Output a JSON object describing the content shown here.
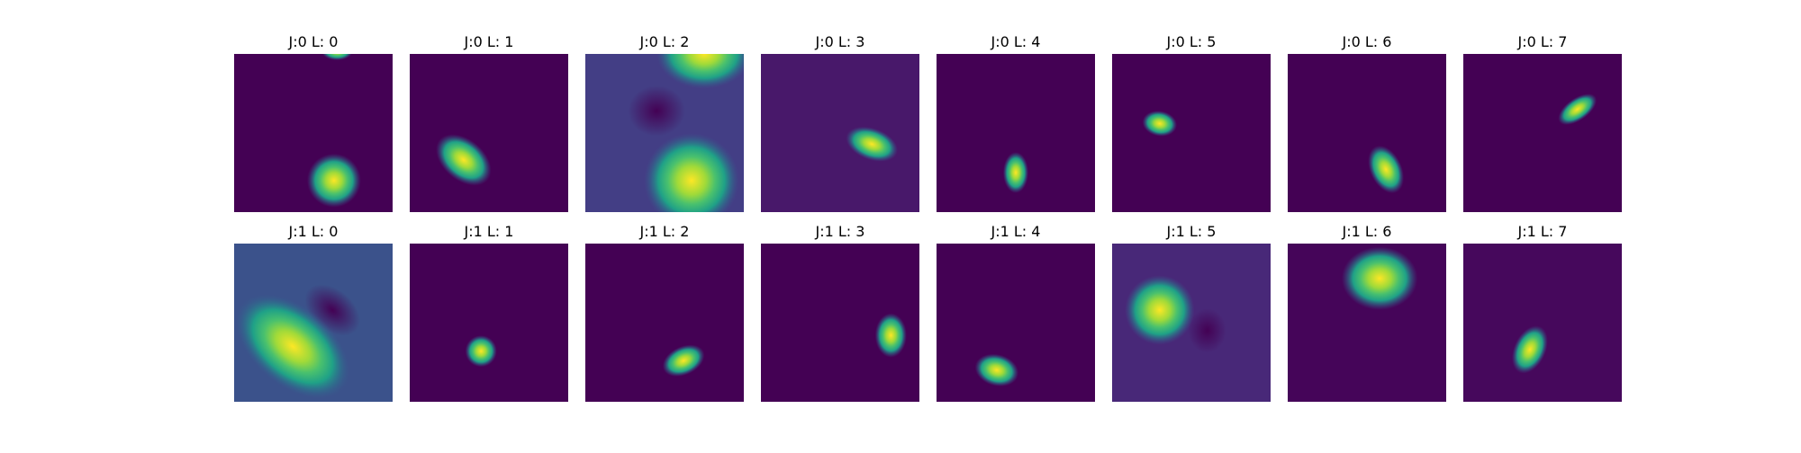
{
  "rows": [
    [
      "J:0 L: 0",
      "J:0 L: 1",
      "J:0 L: 2",
      "J:0 L: 3",
      "J:0 L: 4",
      "J:0 L: 5",
      "J:0 L: 6",
      "J:0 L: 7"
    ],
    [
      "J:1 L: 0",
      "J:1 L: 1",
      "J:1 L: 2",
      "J:1 L: 3",
      "J:1 L: 4",
      "J:1 L: 5",
      "J:1 L: 6",
      "J:1 L: 7"
    ]
  ]
}
